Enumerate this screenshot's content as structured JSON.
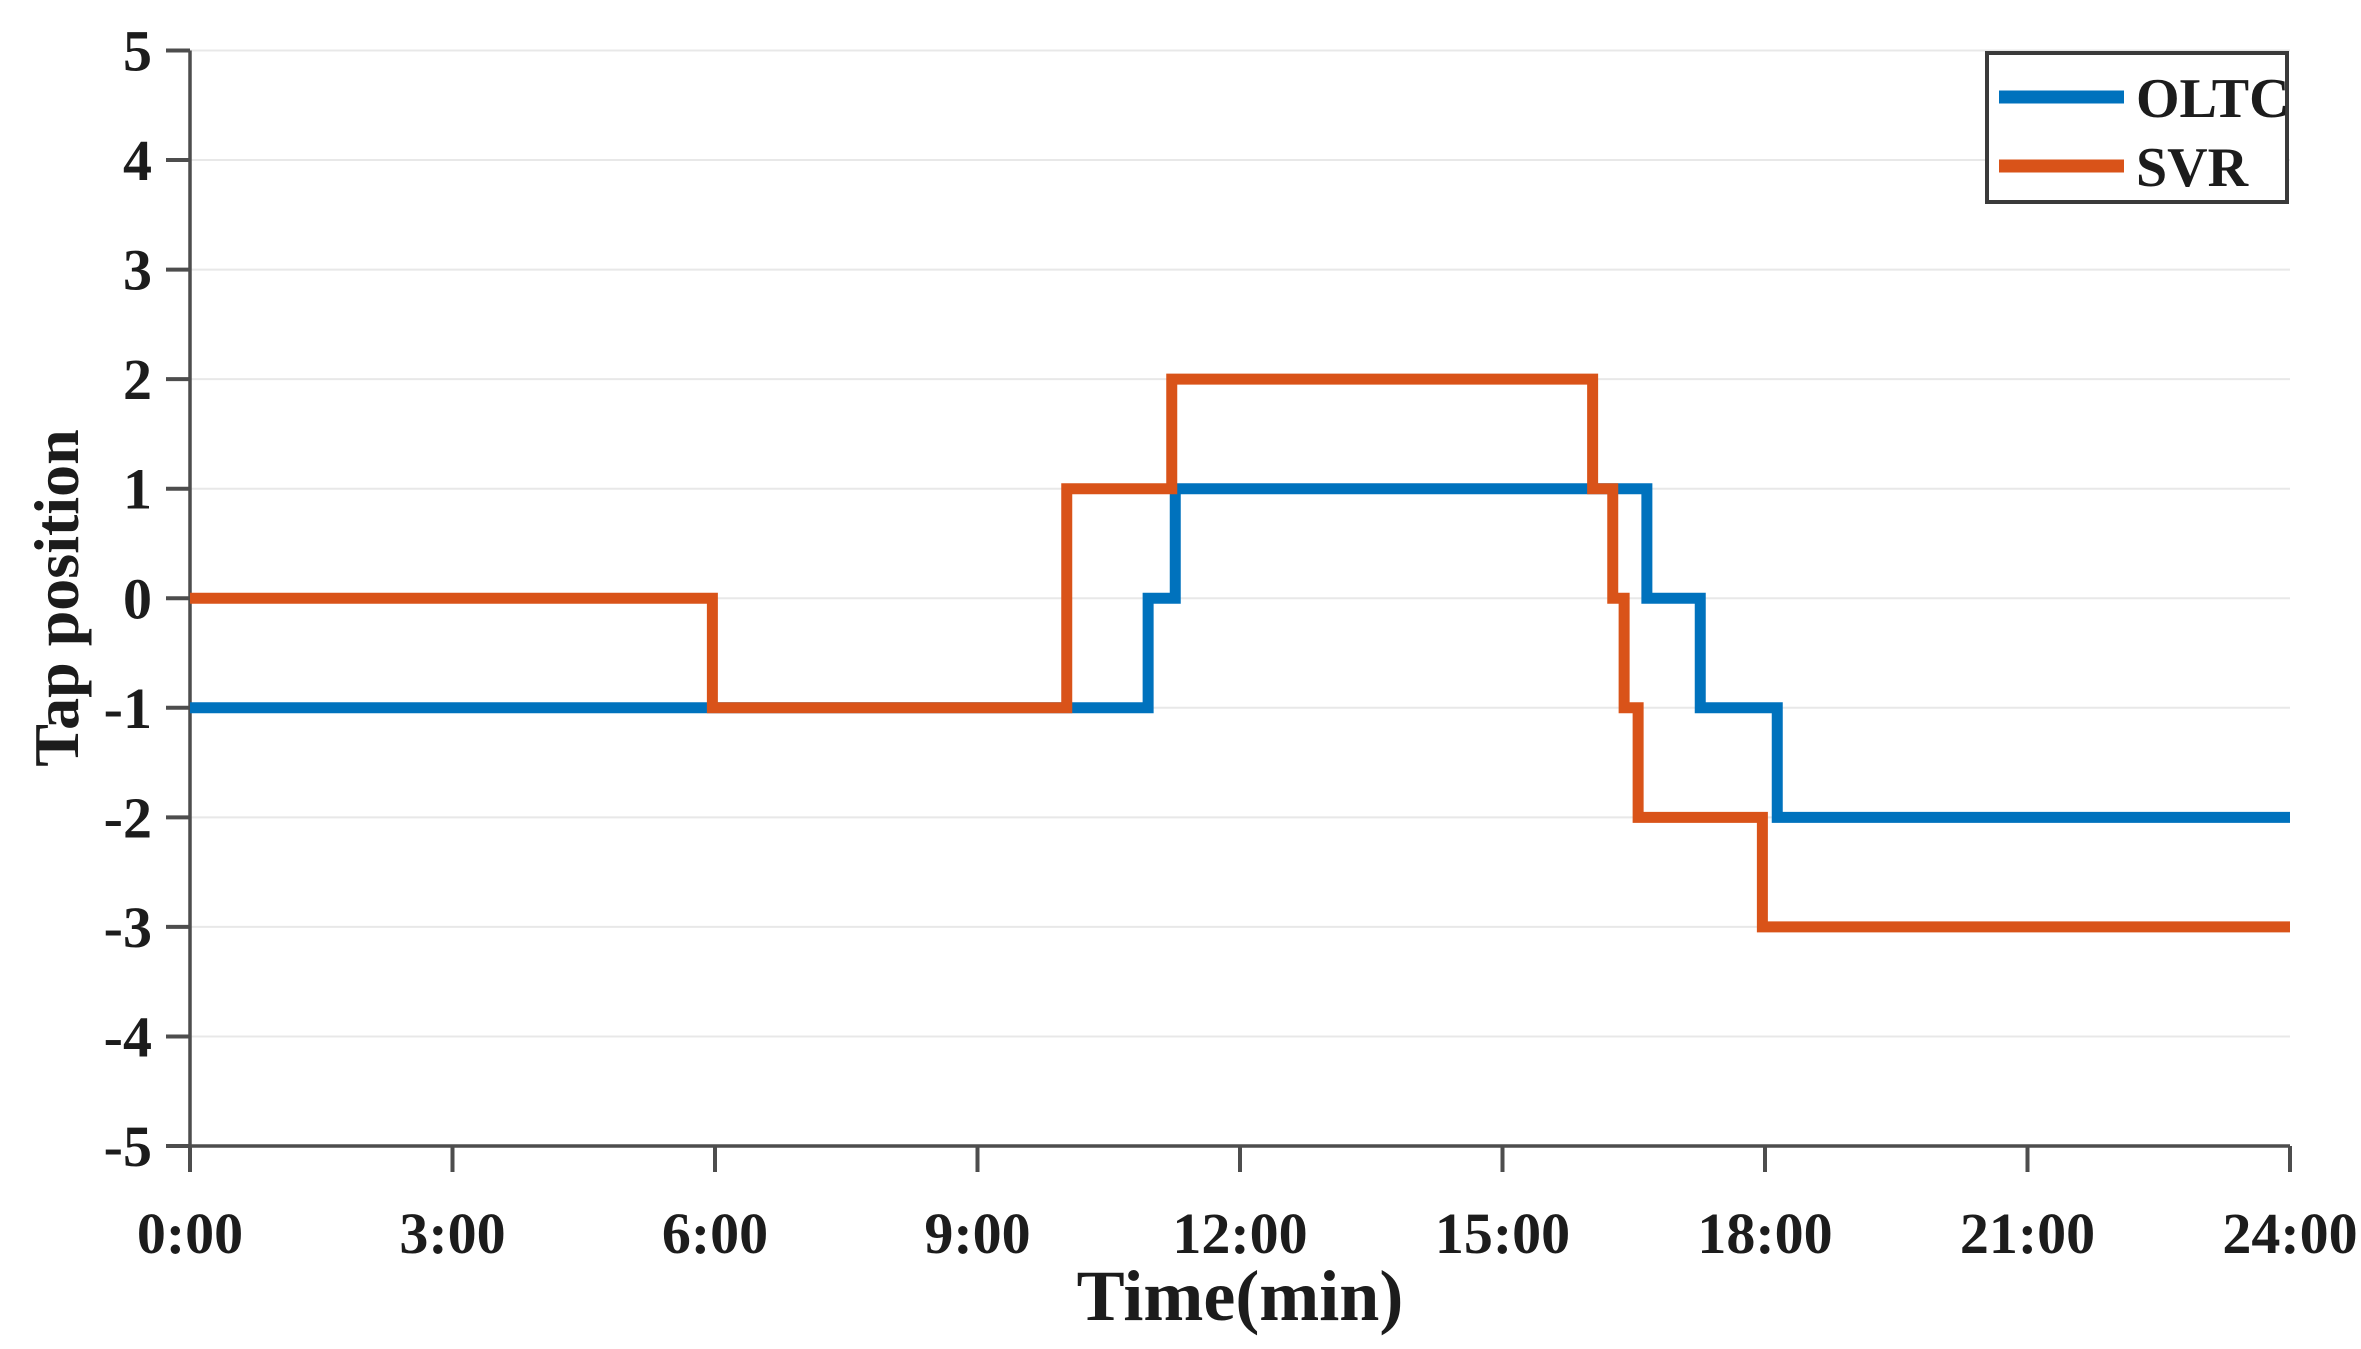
{
  "chart_data": {
    "type": "line",
    "subtype": "step",
    "title": "",
    "xlabel": "Time(min)",
    "ylabel": "Tap position",
    "xlim_hours": [
      0,
      24
    ],
    "ylim": [
      -5,
      5
    ],
    "grid": "horizontal-only",
    "legend_position": "top-right",
    "background": "#ffffff",
    "gridline_color": "#e8e8e8",
    "axis_color": "#4d4d4d",
    "text_color": "#1c1c1c",
    "x_ticks": [
      {
        "hour": 0,
        "label": "0:00"
      },
      {
        "hour": 3,
        "label": "3:00"
      },
      {
        "hour": 6,
        "label": "6:00"
      },
      {
        "hour": 9,
        "label": "9:00"
      },
      {
        "hour": 12,
        "label": "12:00"
      },
      {
        "hour": 15,
        "label": "15:00"
      },
      {
        "hour": 18,
        "label": "18:00"
      },
      {
        "hour": 21,
        "label": "21:00"
      },
      {
        "hour": 24,
        "label": "24:00"
      }
    ],
    "y_ticks": [
      {
        "value": 5,
        "label": "5"
      },
      {
        "value": 4,
        "label": "4"
      },
      {
        "value": 3,
        "label": "3"
      },
      {
        "value": 2,
        "label": "2"
      },
      {
        "value": 1,
        "label": "1"
      },
      {
        "value": 0,
        "label": "0"
      },
      {
        "value": -1,
        "label": "-1"
      },
      {
        "value": -2,
        "label": "-2"
      },
      {
        "value": -3,
        "label": "-3"
      },
      {
        "value": -4,
        "label": "-4"
      },
      {
        "value": -5,
        "label": "-5"
      }
    ],
    "series": [
      {
        "name": "OLTC",
        "color": "#0072BD",
        "steps": [
          {
            "hour": 0,
            "tap": -1
          },
          {
            "hour": 10.95,
            "tap": 0
          },
          {
            "hour": 11.26,
            "tap": 1
          },
          {
            "hour": 16.65,
            "tap": 0
          },
          {
            "hour": 17.26,
            "tap": -1
          },
          {
            "hour": 18.14,
            "tap": -2
          },
          {
            "hour": 24,
            "tap": -2
          }
        ]
      },
      {
        "name": "SVR",
        "color": "#D95319",
        "steps": [
          {
            "hour": 0,
            "tap": 0
          },
          {
            "hour": 5.97,
            "tap": -1
          },
          {
            "hour": 10.02,
            "tap": 1
          },
          {
            "hour": 11.22,
            "tap": 2
          },
          {
            "hour": 16.03,
            "tap": 1
          },
          {
            "hour": 16.26,
            "tap": 0
          },
          {
            "hour": 16.39,
            "tap": -1
          },
          {
            "hour": 16.55,
            "tap": -2
          },
          {
            "hour": 17.97,
            "tap": -3
          },
          {
            "hour": 24,
            "tap": -3
          }
        ]
      }
    ]
  }
}
